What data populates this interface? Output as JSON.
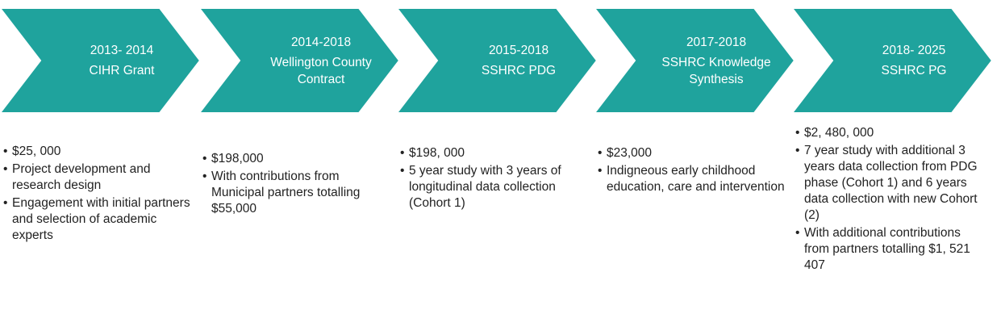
{
  "stages": [
    {
      "period": "2013- 2014",
      "name": "CIHR Grant",
      "bullets": [
        "$25, 000",
        "Project development and research design",
        "Engagement with initial partners and selection of academic experts"
      ]
    },
    {
      "period": "2014-2018",
      "name": "Wellington County Contract",
      "bullets": [
        "$198,000",
        "With contributions from Municipal partners totalling $55,000"
      ]
    },
    {
      "period": "2015-2018",
      "name": "SSHRC PDG",
      "bullets": [
        "$198, 000",
        "5 year study with 3 years of longitudinal data collection (Cohort 1)"
      ]
    },
    {
      "period": "2017-2018",
      "name": "SSHRC Knowledge Synthesis",
      "bullets": [
        "$23,000",
        "Indigneous early childhood education, care and intervention"
      ]
    },
    {
      "period": "2018- 2025",
      "name": "SSHRC PG",
      "bullets": [
        "$2, 480, 000",
        "7 year study with additional 3 years data collection from PDG phase (Cohort 1) and 6 years data collection with new Cohort (2)",
        "With additional contributions from partners totalling $1, 521 407"
      ]
    }
  ]
}
